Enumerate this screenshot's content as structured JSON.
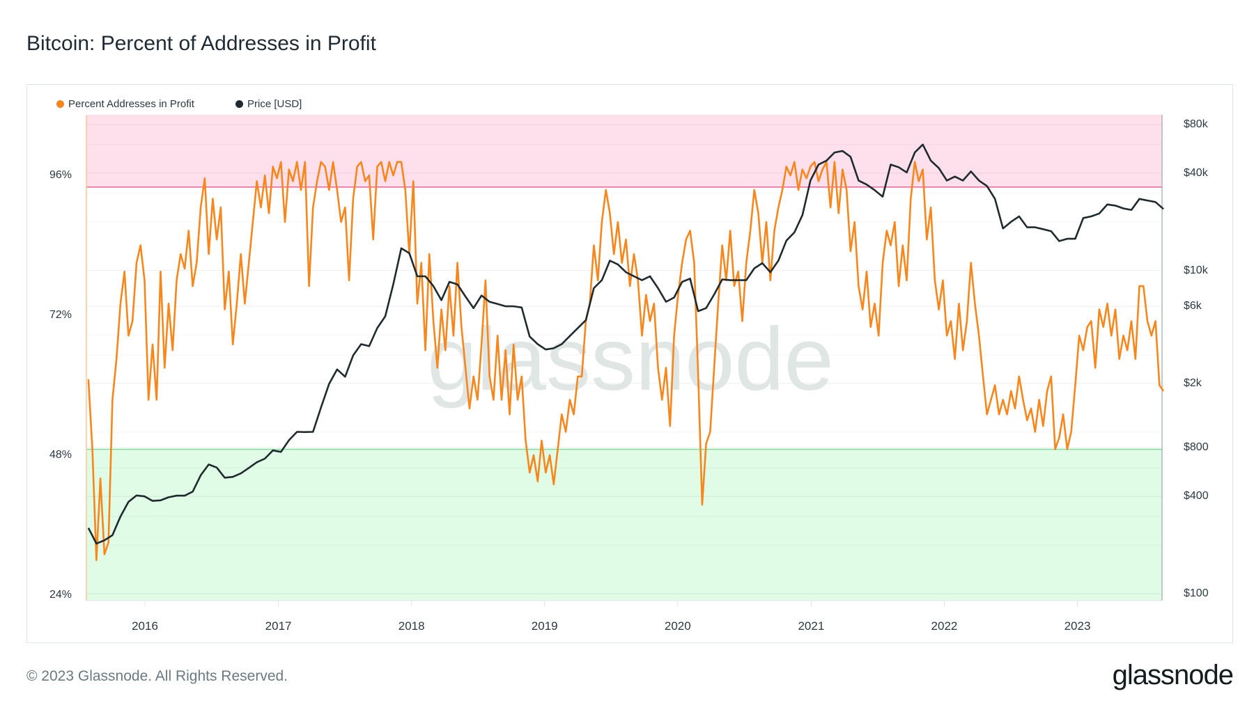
{
  "title": "Bitcoin: Percent of Addresses in Profit",
  "footer": "© 2023 Glassnode. All Rights Reserved.",
  "logo": "glassnode",
  "watermark": "glassnode",
  "chart_data": {
    "type": "line",
    "title": "Bitcoin: Percent of Addresses in Profit",
    "legend_position": "top-left",
    "legend": [
      {
        "name": "Percent Addresses in Profit",
        "color": "#f7861c"
      },
      {
        "name": "Price [USD]",
        "color": "#1f2a2e"
      }
    ],
    "x_ticks": [
      "2016",
      "2017",
      "2018",
      "2019",
      "2020",
      "2021",
      "2022",
      "2023"
    ],
    "x_range": [
      "2015-07-30",
      "2023-09-01"
    ],
    "left_axis": {
      "ticks": [
        "24%",
        "48%",
        "72%",
        "96%"
      ],
      "tick_values": [
        24,
        48,
        72,
        96
      ],
      "range": [
        23,
        106.4
      ]
    },
    "right_axis": {
      "scale": "log",
      "ticks": [
        "$100",
        "$400",
        "$800",
        "$2k",
        "$6k",
        "$10k",
        "$40k",
        "$80k"
      ],
      "tick_values": [
        100,
        400,
        800,
        2000,
        6000,
        10000,
        40000,
        80000
      ]
    },
    "zones": {
      "upper_threshold_pct": 94,
      "upper_color": "#fde0ec",
      "upper_line": "#f06292",
      "lower_threshold_pct": 49,
      "lower_color": "#e0fbe6",
      "lower_line": "#7ee29a"
    },
    "series": [
      {
        "name": "Percent Addresses in Profit",
        "axis": "left",
        "start": "2015-07-30",
        "step_days": 11,
        "values": [
          61,
          49,
          30,
          44,
          31,
          33,
          57.5,
          64.5,
          74,
          79.5,
          68.5,
          71,
          81,
          84,
          78,
          57.5,
          67,
          57.5,
          79.5,
          63,
          74,
          66,
          78,
          82.5,
          80,
          86.5,
          77,
          81,
          90.5,
          95.5,
          82.5,
          92,
          85,
          90.5,
          73,
          79.5,
          67,
          74,
          82.5,
          74,
          81,
          88,
          95,
          90.5,
          96,
          89.5,
          97.5,
          95.5,
          98.3,
          88,
          97,
          95,
          98.3,
          93.5,
          98.3,
          77,
          90.5,
          95,
          98.3,
          97.5,
          93.5,
          98.3,
          93.5,
          88,
          90.5,
          78,
          92,
          97.5,
          98.3,
          95,
          96,
          85,
          97.5,
          98.3,
          95,
          98.3,
          96,
          98.3,
          98.3,
          93.5,
          82.5,
          95,
          74,
          81,
          66,
          82.5,
          71,
          63,
          73,
          66,
          77,
          68.5,
          81,
          70,
          63,
          56,
          61.5,
          57.5,
          67,
          78,
          61.5,
          57.5,
          68.5,
          57.5,
          66,
          55,
          67,
          57.5,
          61.5,
          50.5,
          45,
          48,
          43.5,
          50.5,
          45,
          48,
          43,
          49,
          55,
          52,
          57.5,
          55,
          61.5,
          61.5,
          71,
          74,
          84,
          78,
          88,
          93.5,
          89.5,
          82.5,
          88,
          81,
          85,
          77,
          82.5,
          78,
          68.5,
          75.5,
          71,
          74,
          63,
          57.5,
          63,
          53,
          68.5,
          75.5,
          81,
          85,
          86.5,
          81,
          62,
          39.5,
          50,
          52,
          63,
          74,
          84,
          78,
          86.5,
          77,
          79.5,
          71,
          81,
          86.5,
          93.5,
          89.5,
          81,
          88,
          78,
          86.5,
          90.5,
          93.5,
          97.5,
          96,
          98.3,
          93.5,
          97,
          95.5,
          97.5,
          98.3,
          95,
          97,
          98.3,
          90.5,
          98.3,
          89.5,
          97,
          93.5,
          83,
          88,
          77,
          73,
          79.5,
          70,
          74,
          68.5,
          81,
          86.5,
          84,
          88,
          77,
          84,
          78,
          92,
          98.3,
          95,
          97,
          85,
          90.5,
          78,
          73,
          78,
          68.5,
          71,
          64.5,
          74,
          66,
          71,
          81,
          74,
          68.5,
          61.5,
          55,
          57.5,
          60,
          55,
          57.5,
          55,
          59,
          56,
          61.5,
          57.5,
          54,
          56,
          52,
          57.5,
          53,
          59,
          61.5,
          49,
          51,
          55,
          49,
          52,
          60,
          68.5,
          66,
          70,
          71,
          63,
          73,
          70,
          74,
          68.5,
          73,
          64.5,
          68.5,
          66,
          71,
          64.5,
          77,
          77,
          71,
          68.5,
          71,
          60,
          59
        ]
      },
      {
        "name": "Price [USD]",
        "axis": "right",
        "start": "2015-07-30",
        "step_days": 22,
        "values": [
          255,
          204,
          214,
          230,
          300,
          370,
          405,
          400,
          375,
          378,
          395,
          404,
          404,
          428,
          540,
          630,
          603,
          522,
          528,
          555,
          600,
          650,
          685,
          770,
          754,
          890,
          1003,
          1000,
          1003,
          1420,
          1986,
          2440,
          2200,
          2980,
          3500,
          3400,
          4400,
          5200,
          8200,
          13700,
          12800,
          9200,
          9200,
          8000,
          6550,
          8500,
          8200,
          6900,
          5850,
          7000,
          6400,
          6200,
          6000,
          6000,
          5900,
          3900,
          3500,
          3240,
          3300,
          3500,
          3930,
          4400,
          4920,
          7770,
          8700,
          11500,
          10900,
          9750,
          9200,
          8700,
          9200,
          7770,
          6400,
          6800,
          8500,
          8900,
          5600,
          5850,
          7100,
          8800,
          8700,
          8700,
          8700,
          10300,
          11100,
          9750,
          11500,
          15300,
          17200,
          22000,
          36000,
          45200,
          47800,
          53700,
          54900,
          50500,
          36000,
          34000,
          31400,
          28600,
          45200,
          43500,
          40400,
          53700,
          60100,
          47800,
          43000,
          36000,
          38100,
          36000,
          41000,
          36000,
          33300,
          27700,
          18200,
          20000,
          21600,
          18500,
          18500,
          18000,
          17500,
          15200,
          15700,
          15700,
          21100,
          21600,
          22500,
          25600,
          25200,
          24200,
          23700,
          27700,
          27100,
          26500,
          24000
        ]
      }
    ]
  }
}
